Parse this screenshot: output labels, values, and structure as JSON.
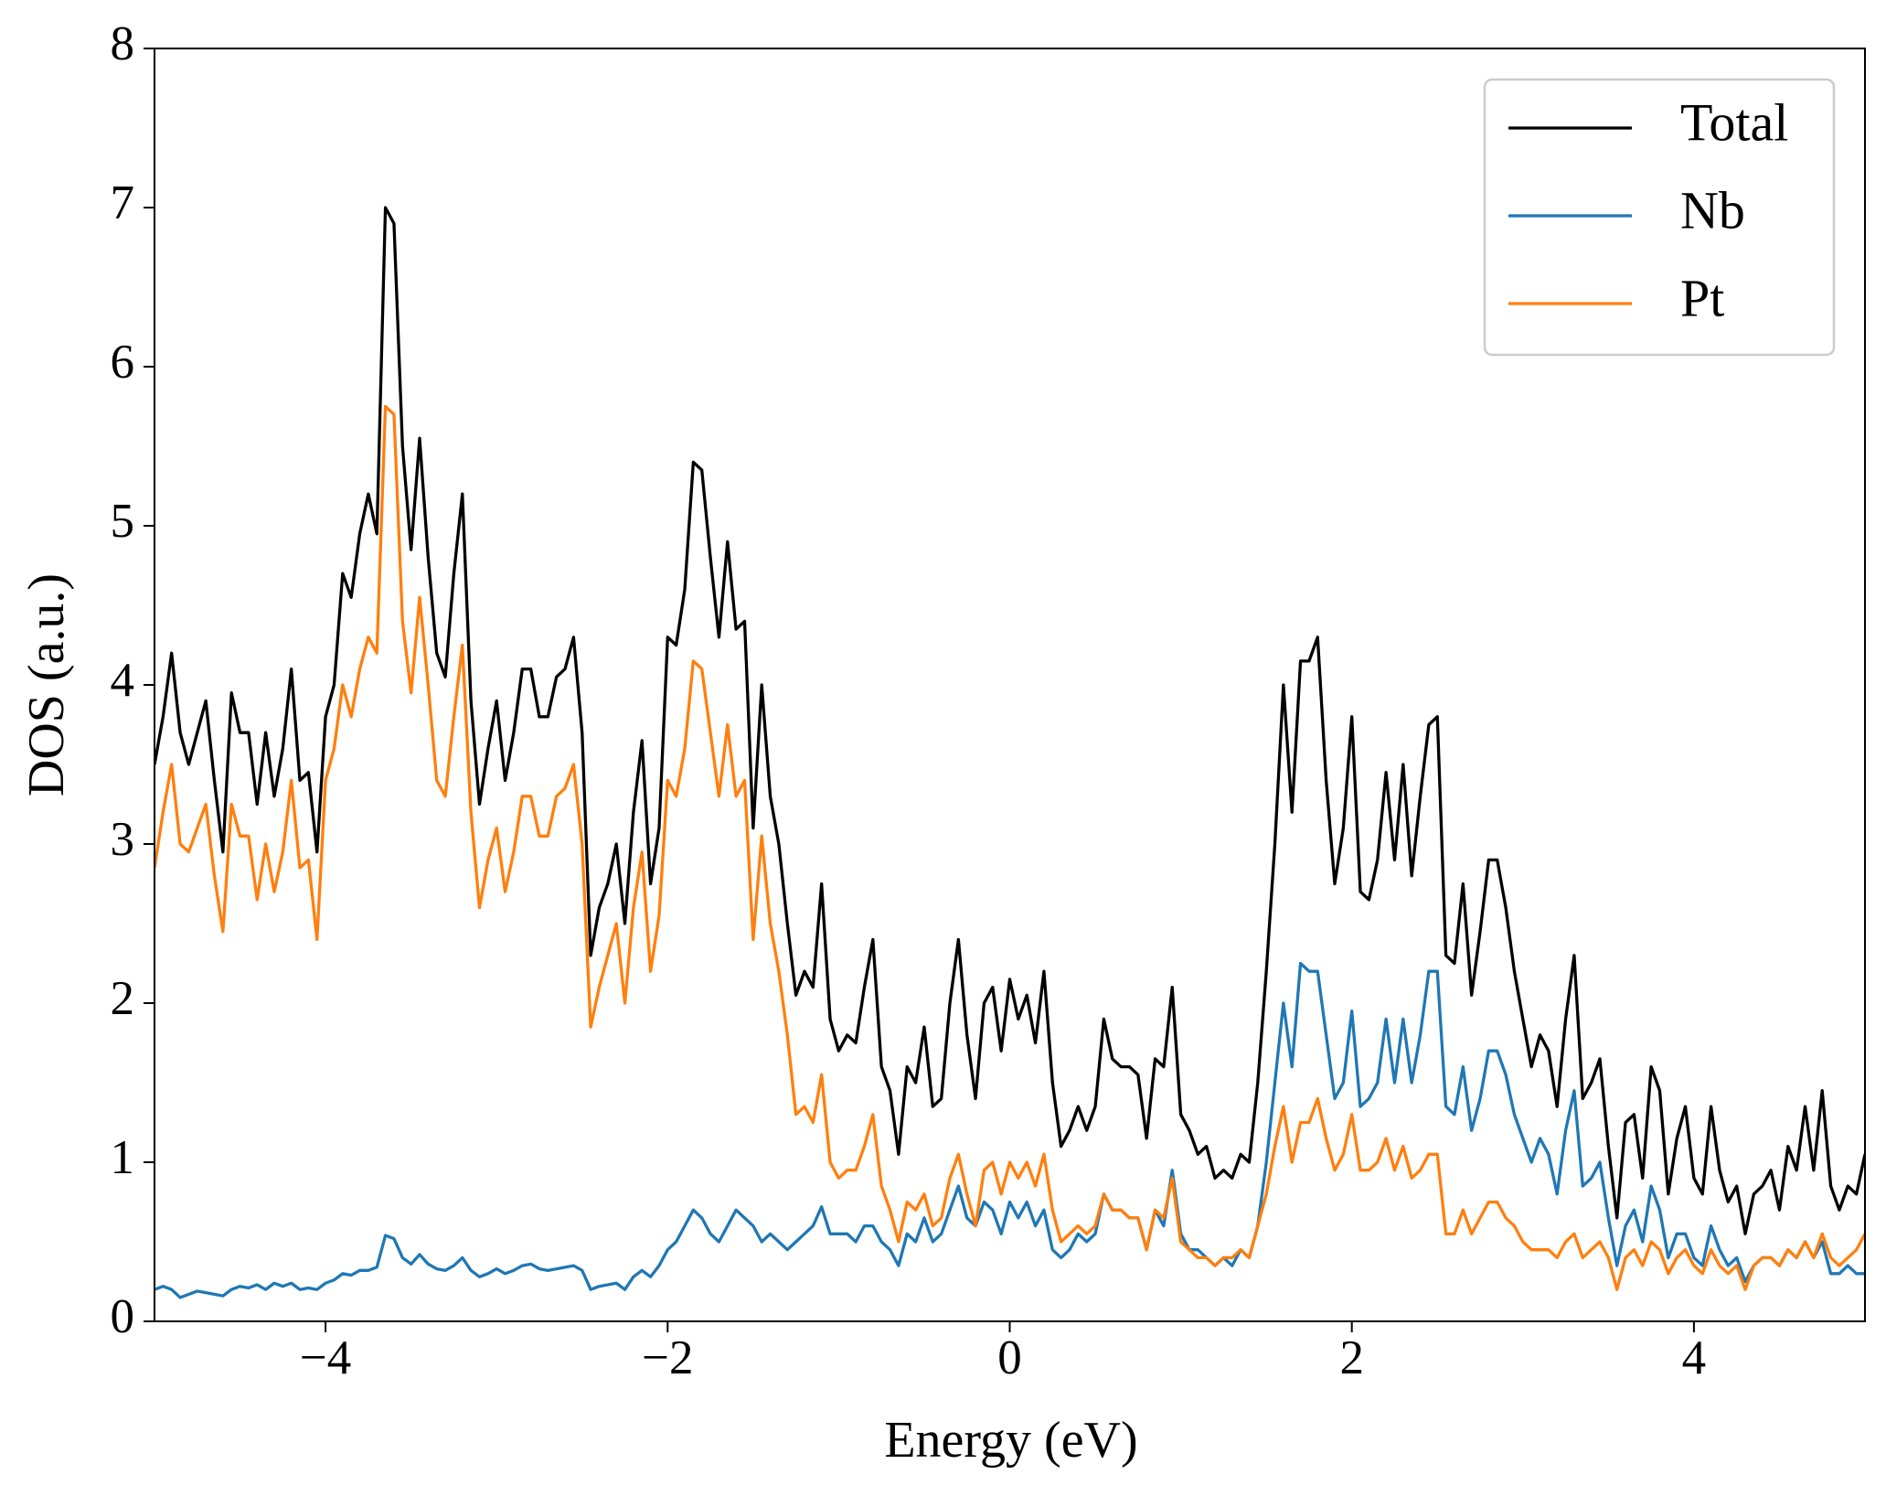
{
  "chart_data": {
    "type": "line",
    "xlabel": "Energy (eV)",
    "ylabel": "DOS (a.u.)",
    "xlim": [
      -5,
      5
    ],
    "ylim": [
      0,
      8
    ],
    "xticks": [
      {
        "value": -4,
        "label": "−4"
      },
      {
        "value": -2,
        "label": "−2"
      },
      0,
      2,
      4
    ],
    "yticks": [
      0,
      1,
      2,
      3,
      4,
      5,
      6,
      7,
      8
    ],
    "legend": "upper right",
    "x": [
      -5,
      -4.95,
      -4.9,
      -4.85,
      -4.8,
      -4.75,
      -4.7,
      -4.65,
      -4.6,
      -4.55,
      -4.5,
      -4.45,
      -4.4,
      -4.35,
      -4.3,
      -4.25,
      -4.2,
      -4.15,
      -4.1,
      -4.05,
      -4,
      -3.95,
      -3.9,
      -3.85,
      -3.8,
      -3.75,
      -3.7,
      -3.65,
      -3.6,
      -3.55,
      -3.5,
      -3.45,
      -3.4,
      -3.35,
      -3.3,
      -3.25,
      -3.2,
      -3.15,
      -3.1,
      -3.05,
      -3,
      -2.95,
      -2.9,
      -2.85,
      -2.8,
      -2.75,
      -2.7,
      -2.65,
      -2.6,
      -2.55,
      -2.5,
      -2.45,
      -2.4,
      -2.35,
      -2.3,
      -2.25,
      -2.2,
      -2.15,
      -2.1,
      -2.05,
      -2,
      -1.95,
      -1.9,
      -1.85,
      -1.8,
      -1.75,
      -1.7,
      -1.65,
      -1.6,
      -1.55,
      -1.5,
      -1.45,
      -1.4,
      -1.35,
      -1.3,
      -1.25,
      -1.2,
      -1.15,
      -1.1,
      -1.05,
      -1,
      -0.95,
      -0.9,
      -0.85,
      -0.8,
      -0.75,
      -0.7,
      -0.65,
      -0.6,
      -0.55,
      -0.5,
      -0.45,
      -0.4,
      -0.35,
      -0.3,
      -0.25,
      -0.2,
      -0.15,
      -0.1,
      -0.05,
      0,
      0.05,
      0.1,
      0.15,
      0.2,
      0.25,
      0.3,
      0.35,
      0.4,
      0.45,
      0.5,
      0.55,
      0.6,
      0.65,
      0.7,
      0.75,
      0.8,
      0.85,
      0.9,
      0.95,
      1,
      1.05,
      1.1,
      1.15,
      1.2,
      1.25,
      1.3,
      1.35,
      1.4,
      1.45,
      1.5,
      1.55,
      1.6,
      1.65,
      1.7,
      1.75,
      1.8,
      1.85,
      1.9,
      1.95,
      2,
      2.05,
      2.1,
      2.15,
      2.2,
      2.25,
      2.3,
      2.35,
      2.4,
      2.45,
      2.5,
      2.55,
      2.6,
      2.65,
      2.7,
      2.75,
      2.8,
      2.85,
      2.9,
      2.95,
      3,
      3.05,
      3.1,
      3.15,
      3.2,
      3.25,
      3.3,
      3.35,
      3.4,
      3.45,
      3.5,
      3.55,
      3.6,
      3.65,
      3.7,
      3.75,
      3.8,
      3.85,
      3.9,
      3.95,
      4,
      4.05,
      4.1,
      4.15,
      4.2,
      4.25,
      4.3,
      4.35,
      4.4,
      4.45,
      4.5,
      4.55,
      4.6,
      4.65,
      4.7,
      4.75,
      4.8,
      4.85,
      4.9,
      4.95,
      5
    ],
    "series": [
      {
        "name": "Total",
        "color": "#000000",
        "values": [
          3.5,
          3.8,
          4.2,
          3.7,
          3.5,
          3.7,
          3.9,
          3.4,
          2.95,
          3.95,
          3.7,
          3.7,
          3.25,
          3.7,
          3.3,
          3.6,
          4.1,
          3.4,
          3.45,
          2.95,
          3.8,
          4.0,
          4.7,
          4.55,
          4.95,
          5.2,
          4.95,
          7.0,
          6.9,
          5.5,
          4.85,
          5.55,
          4.8,
          4.2,
          4.05,
          4.7,
          5.2,
          3.9,
          3.25,
          3.6,
          3.9,
          3.4,
          3.7,
          4.1,
          4.1,
          3.8,
          3.8,
          4.05,
          4.1,
          4.3,
          3.7,
          2.3,
          2.6,
          2.75,
          3.0,
          2.5,
          3.2,
          3.65,
          2.75,
          3.1,
          4.3,
          4.25,
          4.6,
          5.4,
          5.35,
          4.8,
          4.3,
          4.9,
          4.35,
          4.4,
          3.1,
          4.0,
          3.3,
          3.0,
          2.5,
          2.05,
          2.2,
          2.1,
          2.75,
          1.9,
          1.7,
          1.8,
          1.75,
          2.1,
          2.4,
          1.6,
          1.45,
          1.05,
          1.6,
          1.5,
          1.85,
          1.35,
          1.4,
          2.0,
          2.4,
          1.8,
          1.4,
          2.0,
          2.1,
          1.7,
          2.15,
          1.9,
          2.05,
          1.75,
          2.2,
          1.5,
          1.1,
          1.2,
          1.35,
          1.2,
          1.35,
          1.9,
          1.65,
          1.6,
          1.6,
          1.55,
          1.15,
          1.65,
          1.6,
          2.1,
          1.3,
          1.2,
          1.05,
          1.1,
          0.9,
          0.95,
          0.9,
          1.05,
          1.0,
          1.5,
          2.2,
          3.0,
          4.0,
          3.2,
          4.15,
          4.15,
          4.3,
          3.4,
          2.75,
          3.1,
          3.8,
          2.7,
          2.65,
          2.9,
          3.45,
          2.9,
          3.5,
          2.8,
          3.3,
          3.75,
          3.8,
          2.3,
          2.25,
          2.75,
          2.05,
          2.45,
          2.9,
          2.9,
          2.6,
          2.2,
          1.9,
          1.6,
          1.8,
          1.7,
          1.35,
          1.9,
          2.3,
          1.4,
          1.5,
          1.65,
          1.1,
          0.65,
          1.25,
          1.3,
          0.9,
          1.6,
          1.45,
          0.8,
          1.15,
          1.35,
          0.9,
          0.8,
          1.35,
          0.95,
          0.75,
          0.85,
          0.55,
          0.8,
          0.85,
          0.95,
          0.7,
          1.1,
          0.95,
          1.35,
          0.95,
          1.45,
          0.85,
          0.7,
          0.85,
          0.8,
          1.05
        ]
      },
      {
        "name": "Nb",
        "color": "#1f77b4",
        "values": [
          0.2,
          0.22,
          0.2,
          0.15,
          0.17,
          0.19,
          0.18,
          0.17,
          0.16,
          0.2,
          0.22,
          0.21,
          0.23,
          0.2,
          0.24,
          0.22,
          0.24,
          0.2,
          0.21,
          0.2,
          0.24,
          0.26,
          0.3,
          0.29,
          0.32,
          0.32,
          0.34,
          0.54,
          0.52,
          0.4,
          0.36,
          0.42,
          0.36,
          0.33,
          0.32,
          0.35,
          0.4,
          0.32,
          0.28,
          0.3,
          0.33,
          0.3,
          0.32,
          0.35,
          0.36,
          0.33,
          0.32,
          0.33,
          0.34,
          0.35,
          0.32,
          0.2,
          0.22,
          0.23,
          0.24,
          0.2,
          0.28,
          0.32,
          0.28,
          0.35,
          0.45,
          0.5,
          0.6,
          0.7,
          0.65,
          0.55,
          0.5,
          0.6,
          0.7,
          0.65,
          0.6,
          0.5,
          0.55,
          0.5,
          0.45,
          0.5,
          0.55,
          0.6,
          0.72,
          0.55,
          0.55,
          0.55,
          0.5,
          0.6,
          0.6,
          0.5,
          0.45,
          0.35,
          0.55,
          0.5,
          0.65,
          0.5,
          0.55,
          0.7,
          0.85,
          0.65,
          0.6,
          0.75,
          0.7,
          0.55,
          0.75,
          0.65,
          0.75,
          0.6,
          0.7,
          0.45,
          0.4,
          0.45,
          0.55,
          0.5,
          0.55,
          0.8,
          0.7,
          0.7,
          0.65,
          0.65,
          0.45,
          0.7,
          0.6,
          0.95,
          0.55,
          0.45,
          0.45,
          0.4,
          0.35,
          0.4,
          0.35,
          0.45,
          0.4,
          0.6,
          1.0,
          1.5,
          2.0,
          1.6,
          2.25,
          2.2,
          2.2,
          1.8,
          1.4,
          1.5,
          1.95,
          1.35,
          1.4,
          1.5,
          1.9,
          1.5,
          1.9,
          1.5,
          1.8,
          2.2,
          2.2,
          1.35,
          1.3,
          1.6,
          1.2,
          1.4,
          1.7,
          1.7,
          1.55,
          1.3,
          1.15,
          1.0,
          1.15,
          1.05,
          0.8,
          1.2,
          1.45,
          0.85,
          0.9,
          1.0,
          0.65,
          0.35,
          0.6,
          0.7,
          0.5,
          0.85,
          0.7,
          0.4,
          0.55,
          0.55,
          0.4,
          0.35,
          0.6,
          0.45,
          0.35,
          0.4,
          0.25,
          0.35,
          0.4,
          0.4,
          0.35,
          0.45,
          0.4,
          0.5,
          0.4,
          0.5,
          0.3,
          0.3,
          0.35,
          0.3,
          0.3
        ]
      },
      {
        "name": "Pt",
        "color": "#ff7f0e",
        "values": [
          2.85,
          3.2,
          3.5,
          3.0,
          2.95,
          3.1,
          3.25,
          2.8,
          2.45,
          3.25,
          3.05,
          3.05,
          2.65,
          3.0,
          2.7,
          2.95,
          3.4,
          2.85,
          2.9,
          2.4,
          3.4,
          3.6,
          4.0,
          3.8,
          4.1,
          4.3,
          4.2,
          5.75,
          5.7,
          4.4,
          3.95,
          4.55,
          4.0,
          3.4,
          3.3,
          3.8,
          4.25,
          3.2,
          2.6,
          2.9,
          3.1,
          2.7,
          2.95,
          3.3,
          3.3,
          3.05,
          3.05,
          3.3,
          3.35,
          3.5,
          3.0,
          1.85,
          2.1,
          2.3,
          2.5,
          2.0,
          2.6,
          2.95,
          2.2,
          2.55,
          3.4,
          3.3,
          3.6,
          4.15,
          4.1,
          3.7,
          3.3,
          3.75,
          3.3,
          3.4,
          2.4,
          3.05,
          2.5,
          2.2,
          1.8,
          1.3,
          1.35,
          1.25,
          1.55,
          1.0,
          0.9,
          0.95,
          0.95,
          1.1,
          1.3,
          0.85,
          0.7,
          0.5,
          0.75,
          0.7,
          0.8,
          0.6,
          0.65,
          0.9,
          1.05,
          0.8,
          0.6,
          0.95,
          1.0,
          0.8,
          1.0,
          0.9,
          1.0,
          0.85,
          1.05,
          0.7,
          0.5,
          0.55,
          0.6,
          0.55,
          0.6,
          0.8,
          0.7,
          0.7,
          0.65,
          0.65,
          0.45,
          0.7,
          0.65,
          0.9,
          0.5,
          0.45,
          0.4,
          0.4,
          0.35,
          0.4,
          0.4,
          0.45,
          0.4,
          0.6,
          0.8,
          1.1,
          1.35,
          1.0,
          1.25,
          1.25,
          1.4,
          1.15,
          0.95,
          1.05,
          1.3,
          0.95,
          0.95,
          1.0,
          1.15,
          0.95,
          1.1,
          0.9,
          0.95,
          1.05,
          1.05,
          0.55,
          0.55,
          0.7,
          0.55,
          0.65,
          0.75,
          0.75,
          0.65,
          0.6,
          0.5,
          0.45,
          0.45,
          0.45,
          0.4,
          0.5,
          0.55,
          0.4,
          0.45,
          0.5,
          0.4,
          0.2,
          0.4,
          0.45,
          0.35,
          0.5,
          0.45,
          0.3,
          0.4,
          0.45,
          0.35,
          0.3,
          0.45,
          0.35,
          0.3,
          0.35,
          0.2,
          0.35,
          0.4,
          0.4,
          0.35,
          0.45,
          0.4,
          0.5,
          0.4,
          0.55,
          0.4,
          0.35,
          0.4,
          0.45,
          0.55
        ]
      }
    ]
  }
}
